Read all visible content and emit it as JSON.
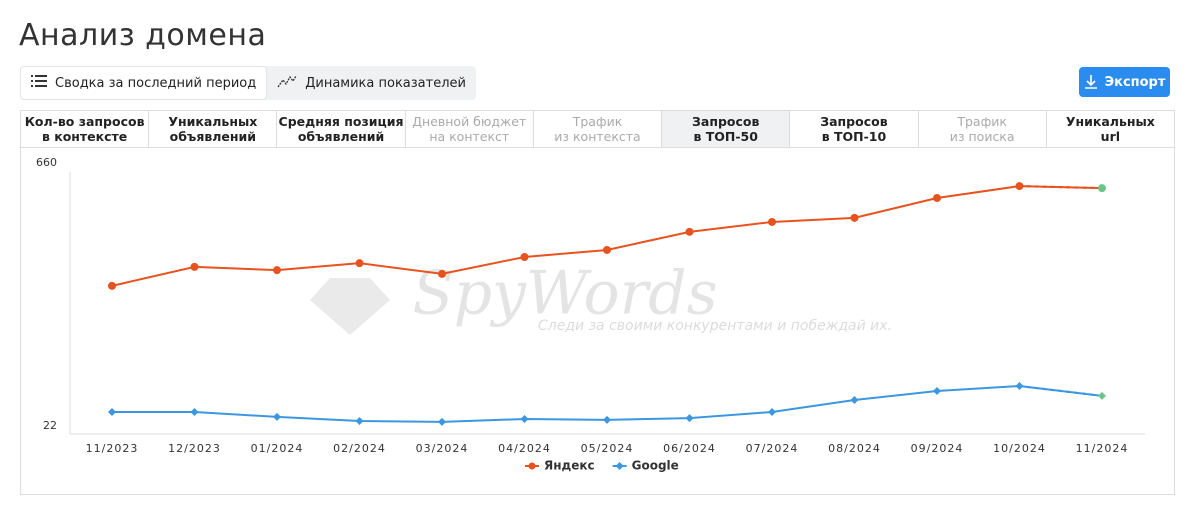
{
  "header": {
    "title": "Анализ домена"
  },
  "view_tabs": [
    {
      "label": "Сводка за последний период",
      "active": true
    },
    {
      "label": "Динамика показателей",
      "active": false
    }
  ],
  "export_button": {
    "label": "Экспорт"
  },
  "metric_tabs": [
    {
      "lines": [
        "Кол-во запросов",
        "в контексте"
      ],
      "disabled": false,
      "selected": false
    },
    {
      "lines": [
        "Уникальных",
        "объявлений"
      ],
      "disabled": false,
      "selected": false
    },
    {
      "lines": [
        "Средняя позиция",
        "объявлений"
      ],
      "disabled": false,
      "selected": false
    },
    {
      "lines": [
        "Дневной бюджет",
        "на контекст"
      ],
      "disabled": true,
      "selected": false
    },
    {
      "lines": [
        "Трафик",
        "из контекста"
      ],
      "disabled": true,
      "selected": false
    },
    {
      "lines": [
        "Запросов",
        "в ТОП-50"
      ],
      "disabled": false,
      "selected": true
    },
    {
      "lines": [
        "Запросов",
        "в ТОП-10"
      ],
      "disabled": false,
      "selected": false
    },
    {
      "lines": [
        "Трафик",
        "из поиска"
      ],
      "disabled": true,
      "selected": false
    },
    {
      "lines": [
        "Уникальных",
        "url"
      ],
      "disabled": false,
      "selected": false
    }
  ],
  "watermark": {
    "brand": "SpyWords",
    "slogan": "Следи за своими конкурентами и побеждай их."
  },
  "chart_data": {
    "type": "line",
    "categories": [
      "11/2023",
      "12/2023",
      "01/2024",
      "02/2024",
      "03/2024",
      "04/2024",
      "05/2024",
      "06/2024",
      "07/2024",
      "08/2024",
      "09/2024",
      "10/2024",
      "11/2024"
    ],
    "series": [
      {
        "name": "Яндекс",
        "color": "#e8521f",
        "marker": "circle",
        "values": [
          362,
          408,
          400,
          417,
          391,
          432,
          449,
          493,
          517,
          527,
          575,
          604,
          599
        ]
      },
      {
        "name": "Google",
        "color": "#3d97e0",
        "marker": "diamond",
        "values": [
          56,
          56,
          44,
          34,
          32,
          39,
          37,
          41,
          56,
          85,
          107,
          119,
          95
        ]
      }
    ],
    "forecast_last_point": true,
    "forecast_color": "#6cc58a",
    "ylim": [
      22,
      660
    ],
    "yticks": [
      22,
      660
    ],
    "grid": false,
    "legend": "bottom"
  }
}
